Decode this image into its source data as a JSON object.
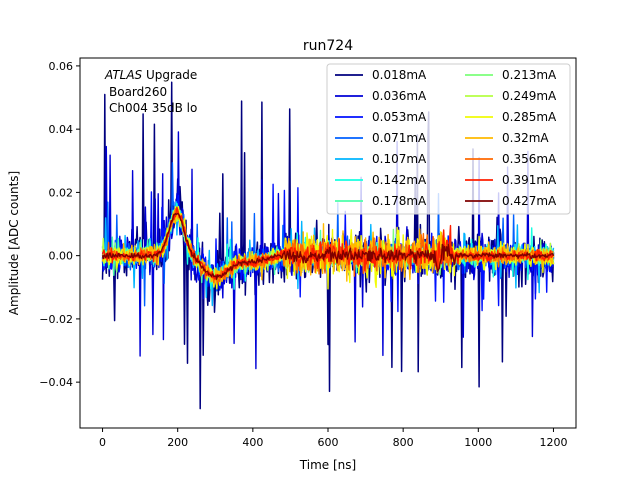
{
  "chart_data": {
    "type": "line",
    "title": "run724",
    "xlabel": "Time [ns]",
    "ylabel": "Amplitude [ADC counts]",
    "xlim": [
      -60,
      1260
    ],
    "ylim": [
      -0.0545,
      0.0625
    ],
    "xticks": [
      0,
      200,
      400,
      600,
      800,
      1000,
      1200
    ],
    "yticks": [
      -0.04,
      -0.02,
      0.0,
      0.02,
      0.04,
      0.06
    ],
    "ytick_labels": [
      "−0.04",
      "−0.02",
      "0.00",
      "0.02",
      "0.04",
      "0.06"
    ],
    "legend_position": "upper-right",
    "legend_columns": 2,
    "annotation": {
      "line1_italic": "ATLAS",
      "line1_rest": " Upgrade",
      "line2": "Board260",
      "line3": "Ch004 35dB lo"
    },
    "series": [
      {
        "name": "0.018mA",
        "color": "#00007f",
        "noise": 0.0085,
        "spike": 0.05
      },
      {
        "name": "0.036mA",
        "color": "#0000d6",
        "noise": 0.0065,
        "spike": 0.035
      },
      {
        "name": "0.053mA",
        "color": "#0010ff",
        "noise": 0.005,
        "spike": 0.025
      },
      {
        "name": "0.071mA",
        "color": "#0060ff",
        "noise": 0.004,
        "spike": 0.018
      },
      {
        "name": "0.107mA",
        "color": "#00b4ff",
        "noise": 0.0033,
        "spike": 0.012
      },
      {
        "name": "0.142mA",
        "color": "#16ffe1",
        "noise": 0.0028,
        "spike": 0.008
      },
      {
        "name": "0.178mA",
        "color": "#4dffaa",
        "noise": 0.0025,
        "spike": 0.006
      },
      {
        "name": "0.213mA",
        "color": "#7cff79",
        "noise": 0.0022,
        "spike": 0.005
      },
      {
        "name": "0.249mA",
        "color": "#b4ff43",
        "noise": 0.002,
        "spike": 0.004
      },
      {
        "name": "0.285mA",
        "color": "#f1fc06",
        "noise": 0.0032,
        "spike": 0.004
      },
      {
        "name": "0.32mA",
        "color": "#ffb900",
        "noise": 0.0028,
        "spike": 0.003
      },
      {
        "name": "0.356mA",
        "color": "#ff6800",
        "noise": 0.0022,
        "spike": 0.003
      },
      {
        "name": "0.391mA",
        "color": "#ff1e00",
        "noise": 0.0016,
        "spike": 0.002
      },
      {
        "name": "0.427mA",
        "color": "#7f0000",
        "noise": 0.0008,
        "spike": 0.001
      }
    ]
  }
}
